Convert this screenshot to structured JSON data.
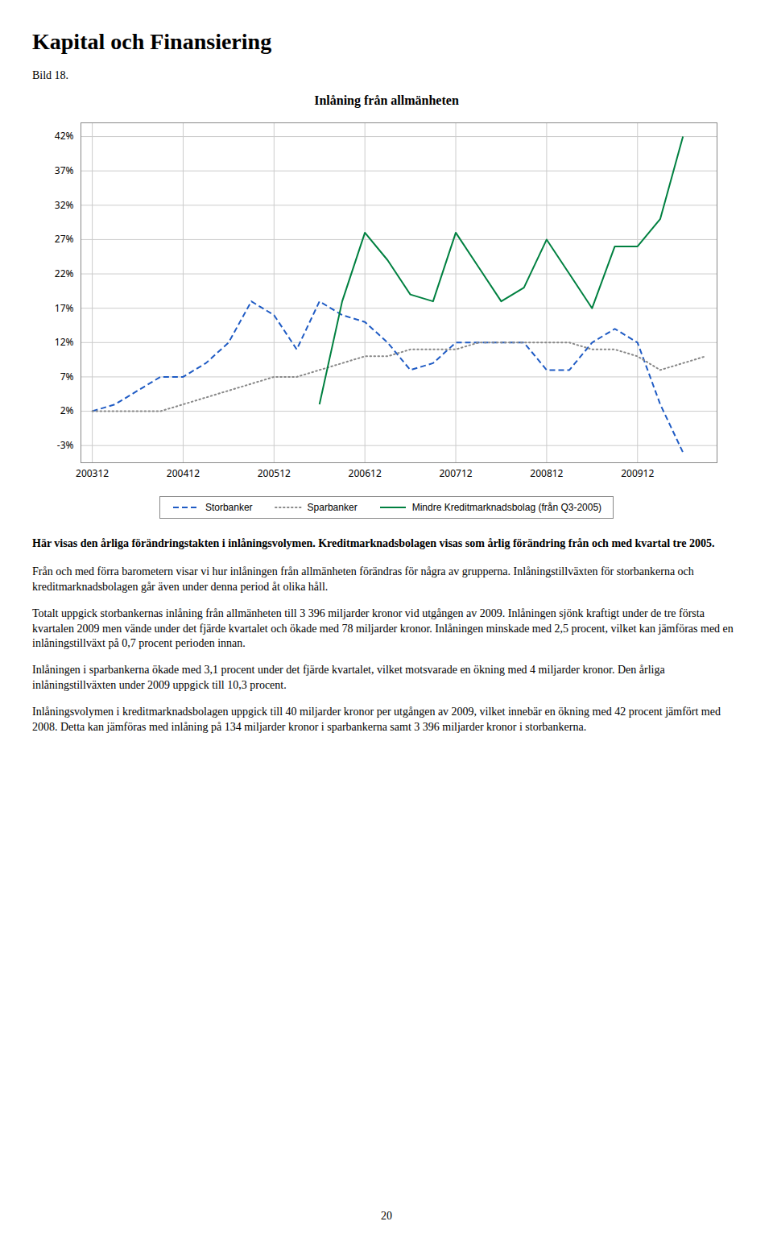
{
  "chart_data": {
    "type": "line",
    "title": "Inlåning från allmänheten",
    "categories": [
      "200312",
      null,
      null,
      null,
      "200412",
      null,
      null,
      null,
      "200512",
      null,
      null,
      null,
      "200612",
      null,
      null,
      null,
      "200712",
      null,
      null,
      null,
      "200812",
      null,
      null,
      null,
      "200912",
      null,
      null,
      null
    ],
    "series": [
      {
        "name": "Storbanker",
        "color": "#1F5BC4",
        "line_style": "dashed",
        "values": [
          2,
          3,
          5,
          7,
          7,
          9,
          12,
          18,
          16,
          11,
          18,
          16,
          15,
          12,
          8,
          9,
          12,
          12,
          12,
          12,
          8,
          8,
          12,
          14,
          12,
          3,
          -4,
          null
        ]
      },
      {
        "name": "Sparbanker",
        "color": "#888888",
        "line_style": "dotted",
        "values": [
          2,
          2,
          2,
          2,
          3,
          4,
          5,
          6,
          7,
          7,
          8,
          9,
          10,
          10,
          11,
          11,
          11,
          12,
          12,
          12,
          12,
          12,
          11,
          11,
          10,
          8,
          9,
          10
        ]
      },
      {
        "name": "Mindre Kreditmarknadsbolag (från Q3-2005)",
        "color": "#008040",
        "line_style": "solid",
        "values": [
          null,
          null,
          null,
          null,
          null,
          null,
          null,
          null,
          null,
          null,
          3,
          18,
          28,
          24,
          19,
          18,
          28,
          23,
          18,
          20,
          27,
          22,
          17,
          26,
          26,
          30,
          42,
          null
        ]
      }
    ],
    "ylim": [
      -5.5,
      44
    ],
    "yticks": [
      {
        "value": -3,
        "label": "-3%"
      },
      {
        "value": 2,
        "label": "2%"
      },
      {
        "value": 7,
        "label": "7%"
      },
      {
        "value": 12,
        "label": "12%"
      },
      {
        "value": 17,
        "label": "17%"
      },
      {
        "value": 22,
        "label": "22%"
      },
      {
        "value": 27,
        "label": "27%"
      },
      {
        "value": 32,
        "label": "32%"
      },
      {
        "value": 37,
        "label": "37%"
      },
      {
        "value": 42,
        "label": "42%"
      }
    ],
    "grid": true,
    "legend": "bottom"
  },
  "header": "Kapital och Finansiering",
  "figure_label": "Bild 18.",
  "bold_text": "Här visas den årliga förändringstakten i inlåningsvolymen. Kreditmarknadsbolagen visas som årlig förändring från och med kvartal tre 2005.",
  "paragraphs": [
    "Från och med förra barometern visar vi hur inlåningen från allmänheten förändras för några av grupperna. Inlåningstillväxten för storbankerna och kreditmarknadsbolagen går även under denna period åt olika håll.",
    "Totalt uppgick storbankernas inlåning från allmänheten till 3 396 miljarder kronor vid utgången av 2009. Inlåningen sjönk kraftigt under de tre första kvartalen 2009 men vände under det fjärde kvartalet och ökade med 78 miljarder kronor. Inlåningen minskade med 2,5 procent, vilket kan jämföras med en inlåningstillväxt på 0,7 procent perioden innan.",
    "Inlåningen i sparbankerna ökade med 3,1 procent under det fjärde kvartalet, vilket motsvarade en ökning med 4 miljarder kronor. Den årliga inlåningstillväxten under 2009 uppgick till 10,3 procent.",
    "Inlåningsvolymen i kreditmarknadsbolagen uppgick till 40 miljarder kronor per utgången av 2009, vilket innebär en ökning med 42 procent jämfört med 2008. Detta kan jämföras med inlåning på 134 miljarder kronor i sparbankerna samt 3 396 miljarder kronor i storbankerna."
  ],
  "page_number": "20"
}
